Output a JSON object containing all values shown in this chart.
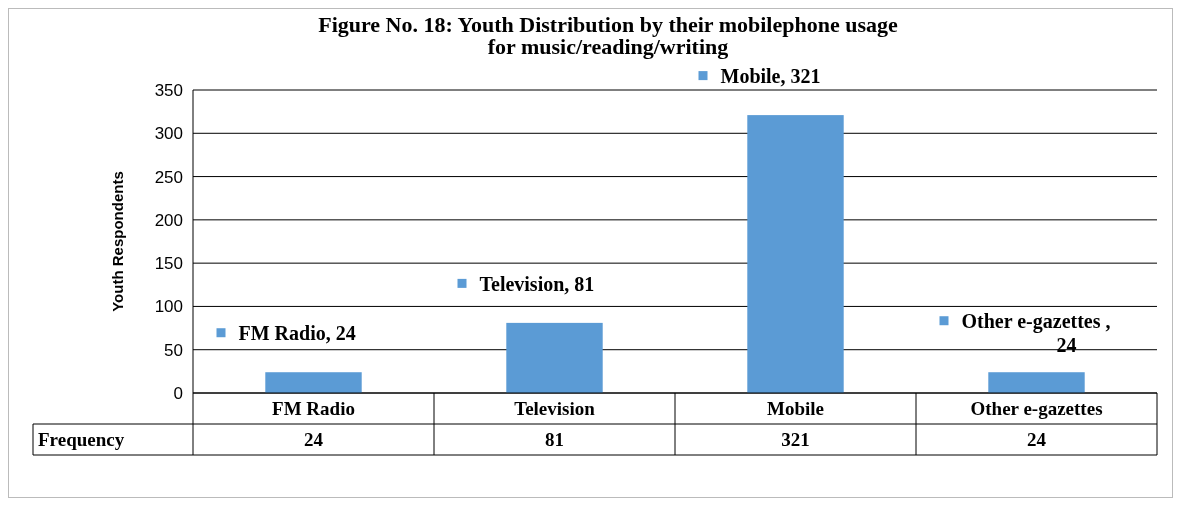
{
  "chart_data": {
    "type": "bar",
    "title": "Figure No. 18: Youth Distribution by their mobilephone usage\nfor music/reading/writing",
    "ylabel": "Youth Respondents",
    "categories": [
      "FM Radio",
      "Television",
      "Mobile",
      "Other e-gazettes"
    ],
    "series": [
      {
        "name": "Frequency",
        "color": "#5b9bd5",
        "values": [
          24,
          81,
          321,
          24
        ],
        "value_labels": [
          "24",
          "81",
          "321",
          "24"
        ]
      }
    ],
    "annotations": [
      "FM Radio, 24",
      "Television, 81",
      "Mobile, 321",
      "Other e-gazettes , 24"
    ],
    "ylim": [
      0,
      350
    ],
    "yticks": [
      0,
      50,
      100,
      150,
      200,
      250,
      300,
      350
    ],
    "grid": "y"
  }
}
